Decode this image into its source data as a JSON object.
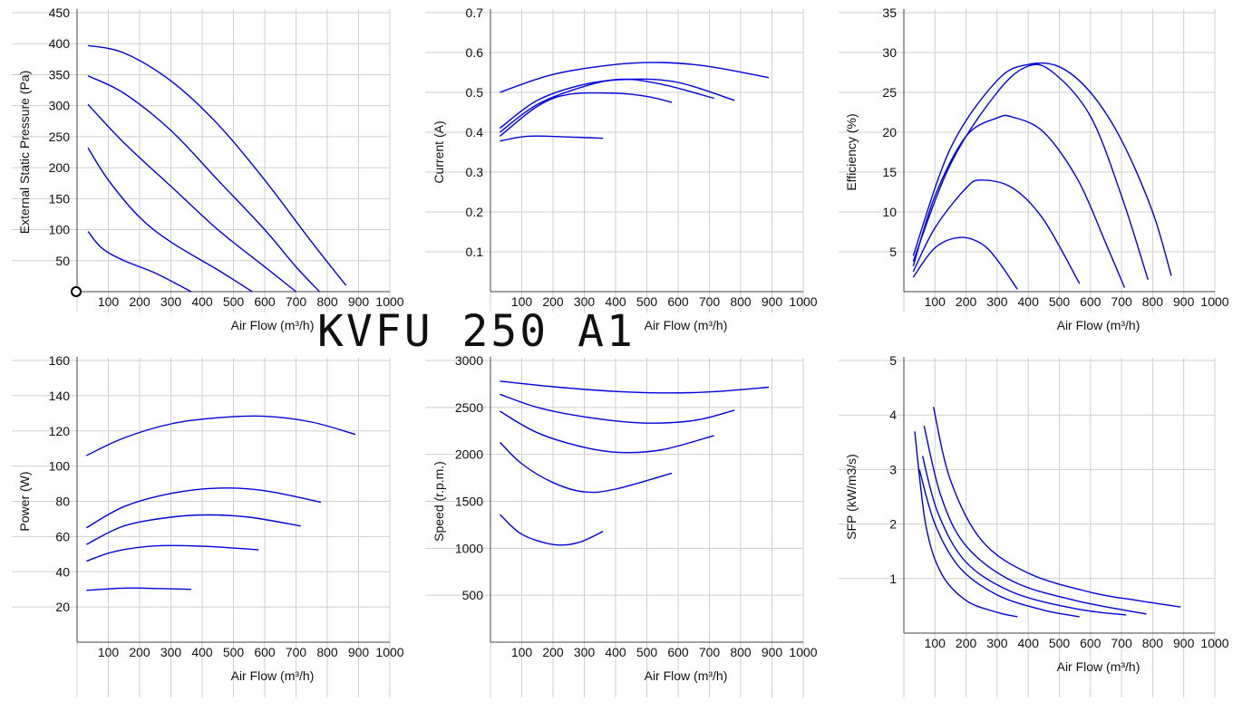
{
  "title": "KVFU 250 A1",
  "colors": {
    "curve": "#0000e0",
    "grid": "#cfcfcf",
    "axis": "#444444"
  },
  "chart_data": [
    {
      "id": "pressure",
      "type": "line",
      "xlabel": "Air Flow (m³/h)",
      "ylabel": "External Static Pressure (Pa)",
      "xlim": [
        0,
        1000
      ],
      "ylim": [
        0,
        450
      ],
      "xticks": [
        100,
        200,
        300,
        400,
        500,
        600,
        700,
        800,
        900,
        1000
      ],
      "yticks": [
        50,
        100,
        150,
        200,
        250,
        300,
        350,
        400,
        450
      ],
      "grid": true,
      "series": [
        {
          "points": [
            [
              35,
              397
            ],
            [
              150,
              385
            ],
            [
              300,
              340
            ],
            [
              450,
              270
            ],
            [
              600,
              180
            ],
            [
              750,
              80
            ],
            [
              860,
              10
            ]
          ]
        },
        {
          "points": [
            [
              35,
              348
            ],
            [
              150,
              320
            ],
            [
              300,
              260
            ],
            [
              450,
              180
            ],
            [
              600,
              100
            ],
            [
              700,
              40
            ],
            [
              775,
              0
            ]
          ]
        },
        {
          "points": [
            [
              35,
              302
            ],
            [
              150,
              240
            ],
            [
              300,
              170
            ],
            [
              450,
              100
            ],
            [
              600,
              40
            ],
            [
              700,
              0
            ]
          ]
        },
        {
          "points": [
            [
              35,
              232
            ],
            [
              100,
              180
            ],
            [
              200,
              120
            ],
            [
              300,
              80
            ],
            [
              450,
              35
            ],
            [
              560,
              0
            ]
          ]
        },
        {
          "points": [
            [
              35,
              97
            ],
            [
              80,
              70
            ],
            [
              150,
              50
            ],
            [
              250,
              30
            ],
            [
              365,
              0
            ]
          ]
        }
      ]
    },
    {
      "id": "current",
      "type": "line",
      "xlabel": "Air Flow (m³/h)",
      "ylabel": "Current (A)",
      "xlim": [
        0,
        1000
      ],
      "ylim": [
        0,
        0.7
      ],
      "xticks": [
        100,
        200,
        300,
        400,
        500,
        600,
        700,
        800,
        900,
        1000
      ],
      "yticks": [
        0.1,
        0.2,
        0.3,
        0.4,
        0.5,
        0.6,
        0.7
      ],
      "grid": true,
      "series": [
        {
          "points": [
            [
              30,
              0.5
            ],
            [
              200,
              0.545
            ],
            [
              400,
              0.57
            ],
            [
              550,
              0.575
            ],
            [
              700,
              0.565
            ],
            [
              890,
              0.537
            ]
          ]
        },
        {
          "points": [
            [
              30,
              0.41
            ],
            [
              150,
              0.48
            ],
            [
              300,
              0.52
            ],
            [
              450,
              0.533
            ],
            [
              600,
              0.525
            ],
            [
              780,
              0.48
            ]
          ]
        },
        {
          "points": [
            [
              30,
              0.4
            ],
            [
              150,
              0.47
            ],
            [
              300,
              0.515
            ],
            [
              420,
              0.533
            ],
            [
              550,
              0.52
            ],
            [
              715,
              0.485
            ]
          ]
        },
        {
          "points": [
            [
              30,
              0.39
            ],
            [
              150,
              0.465
            ],
            [
              250,
              0.495
            ],
            [
              400,
              0.498
            ],
            [
              500,
              0.49
            ],
            [
              580,
              0.475
            ]
          ]
        },
        {
          "points": [
            [
              30,
              0.378
            ],
            [
              120,
              0.39
            ],
            [
              250,
              0.388
            ],
            [
              360,
              0.385
            ]
          ]
        }
      ]
    },
    {
      "id": "efficiency",
      "type": "line",
      "xlabel": "Air Flow (m³/h)",
      "ylabel": "Efficiency (%)",
      "xlim": [
        0,
        1000
      ],
      "ylim": [
        0,
        35
      ],
      "xticks": [
        100,
        200,
        300,
        400,
        500,
        600,
        700,
        800,
        900,
        1000
      ],
      "yticks": [
        5,
        10,
        15,
        20,
        25,
        30,
        35
      ],
      "grid": true,
      "series": [
        {
          "points": [
            [
              30,
              4.5
            ],
            [
              150,
              18
            ],
            [
              300,
              26.5
            ],
            [
              400,
              28.5
            ],
            [
              500,
              28.2
            ],
            [
              600,
              25
            ],
            [
              700,
              19
            ],
            [
              800,
              10
            ],
            [
              860,
              2
            ]
          ]
        },
        {
          "points": [
            [
              30,
              3.8
            ],
            [
              150,
              16
            ],
            [
              300,
              25
            ],
            [
              400,
              28.3
            ],
            [
              480,
              27.5
            ],
            [
              600,
              22
            ],
            [
              700,
              12
            ],
            [
              785,
              1.5
            ]
          ]
        },
        {
          "points": [
            [
              30,
              3.2
            ],
            [
              100,
              12
            ],
            [
              200,
              19.5
            ],
            [
              300,
              21.8
            ],
            [
              350,
              21.9
            ],
            [
              450,
              20
            ],
            [
              560,
              14
            ],
            [
              650,
              6
            ],
            [
              710,
              0.5
            ]
          ]
        },
        {
          "points": [
            [
              30,
              2.5
            ],
            [
              100,
              8
            ],
            [
              200,
              13
            ],
            [
              250,
              14
            ],
            [
              350,
              13
            ],
            [
              450,
              9
            ],
            [
              565,
              1
            ]
          ]
        },
        {
          "points": [
            [
              30,
              1.8
            ],
            [
              100,
              5.5
            ],
            [
              180,
              6.8
            ],
            [
              250,
              6
            ],
            [
              300,
              4
            ],
            [
              365,
              0.3
            ]
          ]
        }
      ]
    },
    {
      "id": "power",
      "type": "line",
      "xlabel": "Air Flow (m³/h)",
      "ylabel": "Power (W)",
      "xlim": [
        0,
        1000
      ],
      "ylim": [
        0,
        160
      ],
      "xticks": [
        100,
        200,
        300,
        400,
        500,
        600,
        700,
        800,
        900,
        1000
      ],
      "yticks": [
        20,
        40,
        60,
        80,
        100,
        120,
        140,
        160
      ],
      "grid": true,
      "series": [
        {
          "points": [
            [
              30,
              106
            ],
            [
              150,
              116
            ],
            [
              300,
              124
            ],
            [
              450,
              127.5
            ],
            [
              600,
              128.3
            ],
            [
              750,
              125
            ],
            [
              890,
              118
            ]
          ]
        },
        {
          "points": [
            [
              30,
              65
            ],
            [
              150,
              77
            ],
            [
              300,
              84.5
            ],
            [
              450,
              87.5
            ],
            [
              600,
              86
            ],
            [
              780,
              79.5
            ]
          ]
        },
        {
          "points": [
            [
              30,
              55.5
            ],
            [
              150,
              66
            ],
            [
              300,
              71
            ],
            [
              420,
              72.3
            ],
            [
              550,
              71
            ],
            [
              715,
              66
            ]
          ]
        },
        {
          "points": [
            [
              30,
              46
            ],
            [
              120,
              51.5
            ],
            [
              250,
              54.7
            ],
            [
              400,
              54.5
            ],
            [
              580,
              52.5
            ]
          ]
        },
        {
          "points": [
            [
              30,
              29.5
            ],
            [
              150,
              30.7
            ],
            [
              250,
              30.5
            ],
            [
              365,
              30
            ]
          ]
        }
      ]
    },
    {
      "id": "speed",
      "type": "line",
      "xlabel": "Air Flow (m³/h)",
      "ylabel": "Speed (r.p.m.)",
      "xlim": [
        0,
        1000
      ],
      "ylim": [
        0,
        3000
      ],
      "xticks": [
        100,
        200,
        300,
        400,
        500,
        600,
        700,
        800,
        900,
        1000
      ],
      "yticks": [
        500,
        1000,
        1500,
        2000,
        2500,
        3000
      ],
      "grid": true,
      "series": [
        {
          "points": [
            [
              30,
              2780
            ],
            [
              200,
              2720
            ],
            [
              400,
              2670
            ],
            [
              550,
              2655
            ],
            [
              700,
              2665
            ],
            [
              890,
              2715
            ]
          ]
        },
        {
          "points": [
            [
              30,
              2640
            ],
            [
              150,
              2500
            ],
            [
              300,
              2400
            ],
            [
              480,
              2335
            ],
            [
              650,
              2360
            ],
            [
              780,
              2470
            ]
          ]
        },
        {
          "points": [
            [
              30,
              2460
            ],
            [
              150,
              2230
            ],
            [
              300,
              2075
            ],
            [
              420,
              2020
            ],
            [
              550,
              2050
            ],
            [
              715,
              2200
            ]
          ]
        },
        {
          "points": [
            [
              30,
              2130
            ],
            [
              100,
              1900
            ],
            [
              200,
              1700
            ],
            [
              300,
              1600
            ],
            [
              400,
              1630
            ],
            [
              580,
              1800
            ]
          ]
        },
        {
          "points": [
            [
              30,
              1360
            ],
            [
              100,
              1150
            ],
            [
              200,
              1040
            ],
            [
              280,
              1060
            ],
            [
              360,
              1180
            ]
          ]
        }
      ]
    },
    {
      "id": "sfp",
      "type": "line",
      "xlabel": "Air Flow (m³/h)",
      "ylabel": "SFP (kW/m3/s)",
      "xlim": [
        0,
        1000
      ],
      "ylim": [
        0,
        5
      ],
      "xticks": [
        100,
        200,
        300,
        400,
        500,
        600,
        700,
        800,
        900,
        1000
      ],
      "yticks": [
        1,
        2,
        3,
        4,
        5
      ],
      "grid": true,
      "series": [
        {
          "points": [
            [
              95,
              4.15
            ],
            [
              150,
              2.8
            ],
            [
              250,
              1.7
            ],
            [
              400,
              1.1
            ],
            [
              600,
              0.75
            ],
            [
              750,
              0.6
            ],
            [
              890,
              0.48
            ]
          ]
        },
        {
          "points": [
            [
              65,
              3.8
            ],
            [
              120,
              2.5
            ],
            [
              200,
              1.6
            ],
            [
              350,
              0.95
            ],
            [
              550,
              0.6
            ],
            [
              780,
              0.35
            ]
          ]
        },
        {
          "points": [
            [
              60,
              3.25
            ],
            [
              110,
              2.2
            ],
            [
              200,
              1.3
            ],
            [
              350,
              0.75
            ],
            [
              550,
              0.45
            ],
            [
              715,
              0.33
            ]
          ]
        },
        {
          "points": [
            [
              50,
              3.0
            ],
            [
              100,
              2.0
            ],
            [
              180,
              1.2
            ],
            [
              300,
              0.7
            ],
            [
              450,
              0.42
            ],
            [
              565,
              0.3
            ]
          ]
        },
        {
          "points": [
            [
              35,
              3.7
            ],
            [
              70,
              2.0
            ],
            [
              120,
              1.1
            ],
            [
              200,
              0.6
            ],
            [
              300,
              0.38
            ],
            [
              365,
              0.3
            ]
          ]
        }
      ]
    }
  ]
}
